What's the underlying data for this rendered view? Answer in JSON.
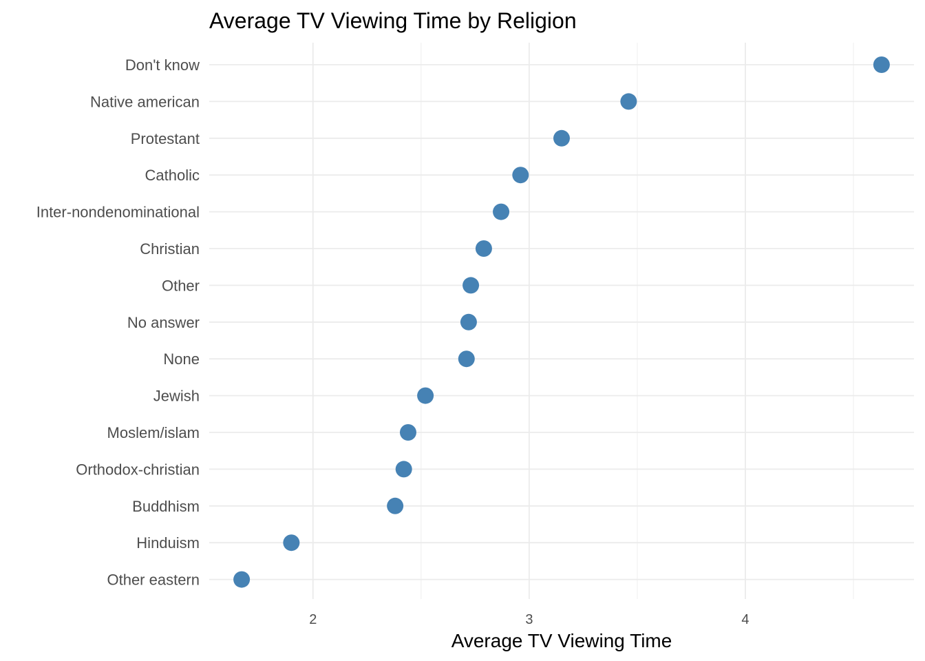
{
  "chart_data": {
    "type": "scatter",
    "title": "Average TV Viewing Time by Religion",
    "xlabel": "Average TV Viewing Time",
    "ylabel": "",
    "xlim": [
      1.52,
      4.78
    ],
    "x_ticks": [
      2,
      3,
      4
    ],
    "x_tick_labels": [
      "2",
      "3",
      "4"
    ],
    "x_minor_ticks": [
      1.5,
      2.5,
      3.5,
      4.5
    ],
    "grid": true,
    "point_color": "#4682B4",
    "categories": [
      "Don't know",
      "Native american",
      "Protestant",
      "Catholic",
      "Inter-nondenominational",
      "Christian",
      "Other",
      "No answer",
      "None",
      "Jewish",
      "Moslem/islam",
      "Orthodox-christian",
      "Buddhism",
      "Hinduism",
      "Other eastern"
    ],
    "values": [
      4.63,
      3.46,
      3.15,
      2.96,
      2.87,
      2.79,
      2.73,
      2.72,
      2.71,
      2.52,
      2.44,
      2.42,
      2.38,
      1.9,
      1.67
    ]
  }
}
